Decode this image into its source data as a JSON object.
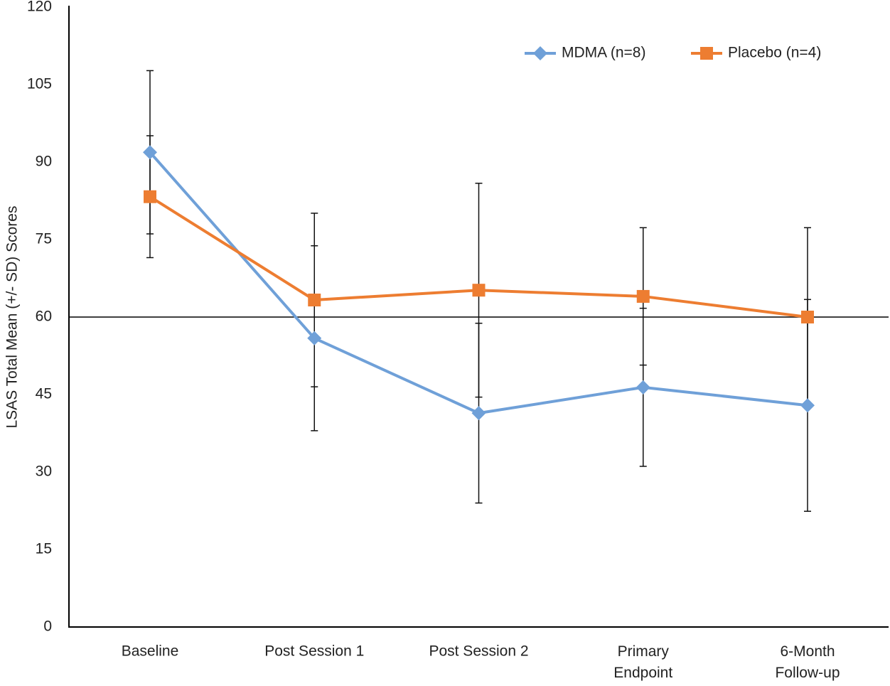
{
  "chart_data": {
    "type": "line",
    "y_label": "LSAS Total  Mean (+/- SD) Scores",
    "categories": [
      "Baseline",
      "Post Session 1",
      "Post Session 2",
      "Primary\nEndpoint",
      "6-Month\nFollow-up"
    ],
    "series": [
      {
        "name": "MDMA (n=8)",
        "color": "#6fa0d8",
        "marker": "diamond",
        "values": [
          91.9,
          55.9,
          41.4,
          46.4,
          42.9
        ],
        "errors": [
          15.8,
          17.9,
          17.4,
          15.3,
          20.5
        ]
      },
      {
        "name": "Placebo (n=4)",
        "color": "#ed7d31",
        "marker": "square",
        "values": [
          83.3,
          63.3,
          65.2,
          64.0,
          60.0
        ],
        "errors": [
          11.8,
          16.8,
          20.7,
          13.3,
          17.3
        ]
      }
    ],
    "reference_line": 60,
    "ylim": [
      0,
      120
    ],
    "yticks": [
      0,
      15,
      30,
      45,
      60,
      75,
      90,
      105,
      120
    ],
    "grid": false,
    "legend": "top-right"
  }
}
